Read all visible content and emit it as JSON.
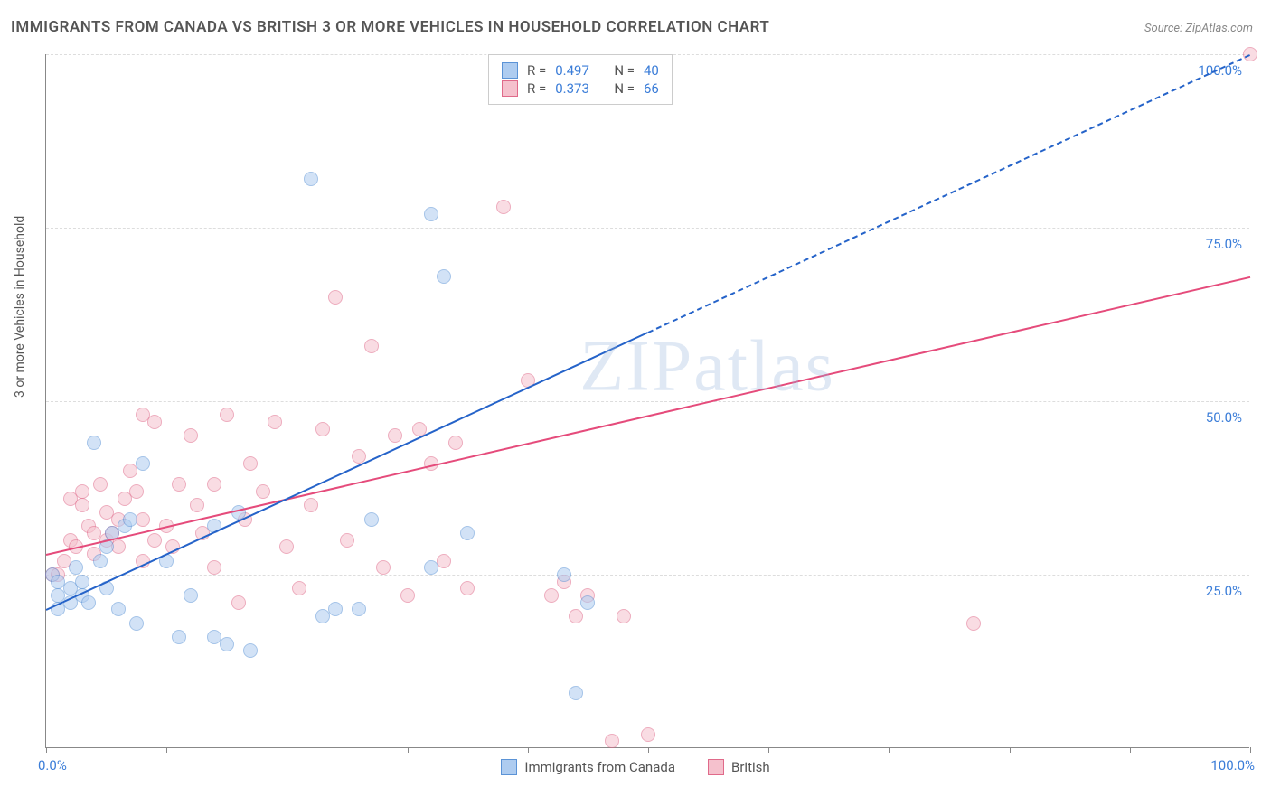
{
  "title": "IMMIGRANTS FROM CANADA VS BRITISH 3 OR MORE VEHICLES IN HOUSEHOLD CORRELATION CHART",
  "source": "Source: ZipAtlas.com",
  "watermark": "ZIPatlas",
  "chart": {
    "type": "scatter",
    "background_color": "#ffffff",
    "grid_color": "#dddddd",
    "axis_color": "#888888",
    "title_fontsize": 17,
    "label_fontsize": 14,
    "tick_fontsize": 15,
    "value_color": "#3b7dd8",
    "xlim": [
      0,
      100
    ],
    "ylim": [
      0,
      100
    ],
    "x_ticks": [
      0,
      10,
      20,
      30,
      40,
      50,
      60,
      70,
      80,
      90,
      100
    ],
    "y_ticks": [
      25,
      50,
      75,
      100
    ],
    "x_axis_label_left": "0.0%",
    "x_axis_label_right": "100.0%",
    "y_axis_labels": [
      "25.0%",
      "50.0%",
      "75.0%",
      "100.0%"
    ],
    "y_title": "3 or more Vehicles in Household",
    "point_radius": 8,
    "point_opacity": 0.55,
    "line_width": 2,
    "series": [
      {
        "name": "Immigrants from Canada",
        "fill_color": "#aeccf0",
        "stroke_color": "#5b93d6",
        "line_color": "#2563c9",
        "r": 0.497,
        "n": 40,
        "trend": {
          "x1": 0,
          "y1": 20,
          "x2": 50,
          "y2": 60,
          "x2_dash": 100,
          "y2_dash": 100
        },
        "points": [
          [
            0.5,
            25
          ],
          [
            1,
            22
          ],
          [
            1,
            20
          ],
          [
            1,
            24
          ],
          [
            2,
            23
          ],
          [
            2,
            21
          ],
          [
            2.5,
            26
          ],
          [
            3,
            22
          ],
          [
            3,
            24
          ],
          [
            3.5,
            21
          ],
          [
            4,
            44
          ],
          [
            4.5,
            27
          ],
          [
            5,
            29
          ],
          [
            5,
            23
          ],
          [
            5.5,
            31
          ],
          [
            6,
            20
          ],
          [
            6.5,
            32
          ],
          [
            7,
            33
          ],
          [
            7.5,
            18
          ],
          [
            8,
            41
          ],
          [
            10,
            27
          ],
          [
            11,
            16
          ],
          [
            12,
            22
          ],
          [
            14,
            16
          ],
          [
            14,
            32
          ],
          [
            15,
            15
          ],
          [
            16,
            34
          ],
          [
            17,
            14
          ],
          [
            22,
            82
          ],
          [
            23,
            19
          ],
          [
            24,
            20
          ],
          [
            26,
            20
          ],
          [
            27,
            33
          ],
          [
            32,
            77
          ],
          [
            32,
            26
          ],
          [
            33,
            68
          ],
          [
            35,
            31
          ],
          [
            43,
            25
          ],
          [
            44,
            8
          ],
          [
            45,
            21
          ]
        ]
      },
      {
        "name": "British",
        "fill_color": "#f5c1cd",
        "stroke_color": "#e06a8a",
        "line_color": "#e54b7b",
        "r": 0.373,
        "n": 66,
        "trend": {
          "x1": 0,
          "y1": 28,
          "x2": 100,
          "y2": 68
        },
        "points": [
          [
            0.5,
            25
          ],
          [
            1,
            25
          ],
          [
            1.5,
            27
          ],
          [
            2,
            30
          ],
          [
            2,
            36
          ],
          [
            2.5,
            29
          ],
          [
            3,
            35
          ],
          [
            3,
            37
          ],
          [
            3.5,
            32
          ],
          [
            4,
            31
          ],
          [
            4,
            28
          ],
          [
            4.5,
            38
          ],
          [
            5,
            30
          ],
          [
            5,
            34
          ],
          [
            5.5,
            31
          ],
          [
            6,
            29
          ],
          [
            6,
            33
          ],
          [
            6.5,
            36
          ],
          [
            7,
            40
          ],
          [
            7.5,
            37
          ],
          [
            8,
            27
          ],
          [
            8,
            33
          ],
          [
            8,
            48
          ],
          [
            9,
            30
          ],
          [
            9,
            47
          ],
          [
            10,
            32
          ],
          [
            10.5,
            29
          ],
          [
            11,
            38
          ],
          [
            12,
            45
          ],
          [
            12.5,
            35
          ],
          [
            13,
            31
          ],
          [
            14,
            38
          ],
          [
            14,
            26
          ],
          [
            15,
            48
          ],
          [
            16,
            21
          ],
          [
            16.5,
            33
          ],
          [
            17,
            41
          ],
          [
            18,
            37
          ],
          [
            19,
            47
          ],
          [
            20,
            29
          ],
          [
            21,
            23
          ],
          [
            22,
            35
          ],
          [
            23,
            46
          ],
          [
            24,
            65
          ],
          [
            25,
            30
          ],
          [
            26,
            42
          ],
          [
            27,
            58
          ],
          [
            28,
            26
          ],
          [
            29,
            45
          ],
          [
            30,
            22
          ],
          [
            31,
            46
          ],
          [
            32,
            41
          ],
          [
            33,
            27
          ],
          [
            34,
            44
          ],
          [
            35,
            23
          ],
          [
            38,
            78
          ],
          [
            40,
            53
          ],
          [
            42,
            22
          ],
          [
            43,
            24
          ],
          [
            44,
            19
          ],
          [
            45,
            22
          ],
          [
            47,
            1
          ],
          [
            48,
            19
          ],
          [
            50,
            2
          ],
          [
            77,
            18
          ],
          [
            100,
            100
          ]
        ]
      }
    ],
    "legend_top": {
      "r_label": "R =",
      "n_label": "N ="
    },
    "legend_bottom_items": [
      "Immigrants from Canada",
      "British"
    ]
  }
}
